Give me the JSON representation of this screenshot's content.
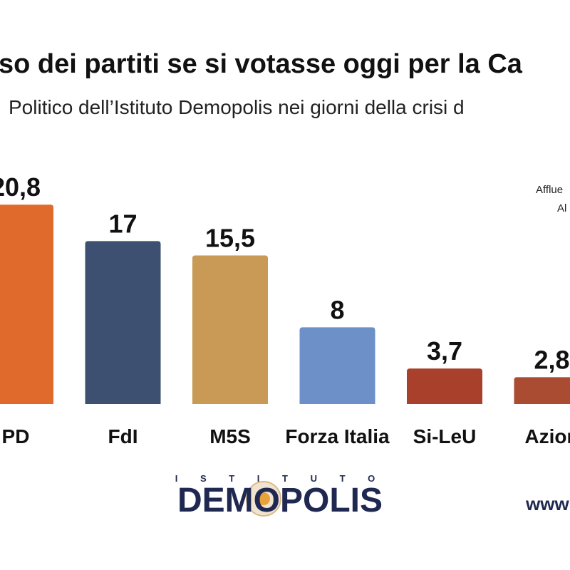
{
  "chart_data": {
    "type": "bar",
    "title": "so dei partiti se si votasse oggi per la Ca",
    "subtitle": "Politico dell’Istituto Demopolis nei giorni della crisi d",
    "annotations": [
      "Afflue",
      "Al"
    ],
    "categories": [
      "PD",
      "FdI",
      "M5S",
      "Forza Italia",
      "Si-LeU",
      "Azion"
    ],
    "values": [
      20.8,
      17,
      15.5,
      8,
      3.7,
      2.8
    ],
    "value_labels": [
      "20,8",
      "17",
      "15,5",
      "8",
      "3,7",
      "2,8"
    ],
    "colors": [
      "#e06a2c",
      "#3d5072",
      "#c99a55",
      "#6d90c8",
      "#a8402c",
      "#a94c32"
    ]
  },
  "logo": {
    "top": "I S T I T U T O",
    "name": "DEMOPOLIS",
    "url": "www"
  }
}
